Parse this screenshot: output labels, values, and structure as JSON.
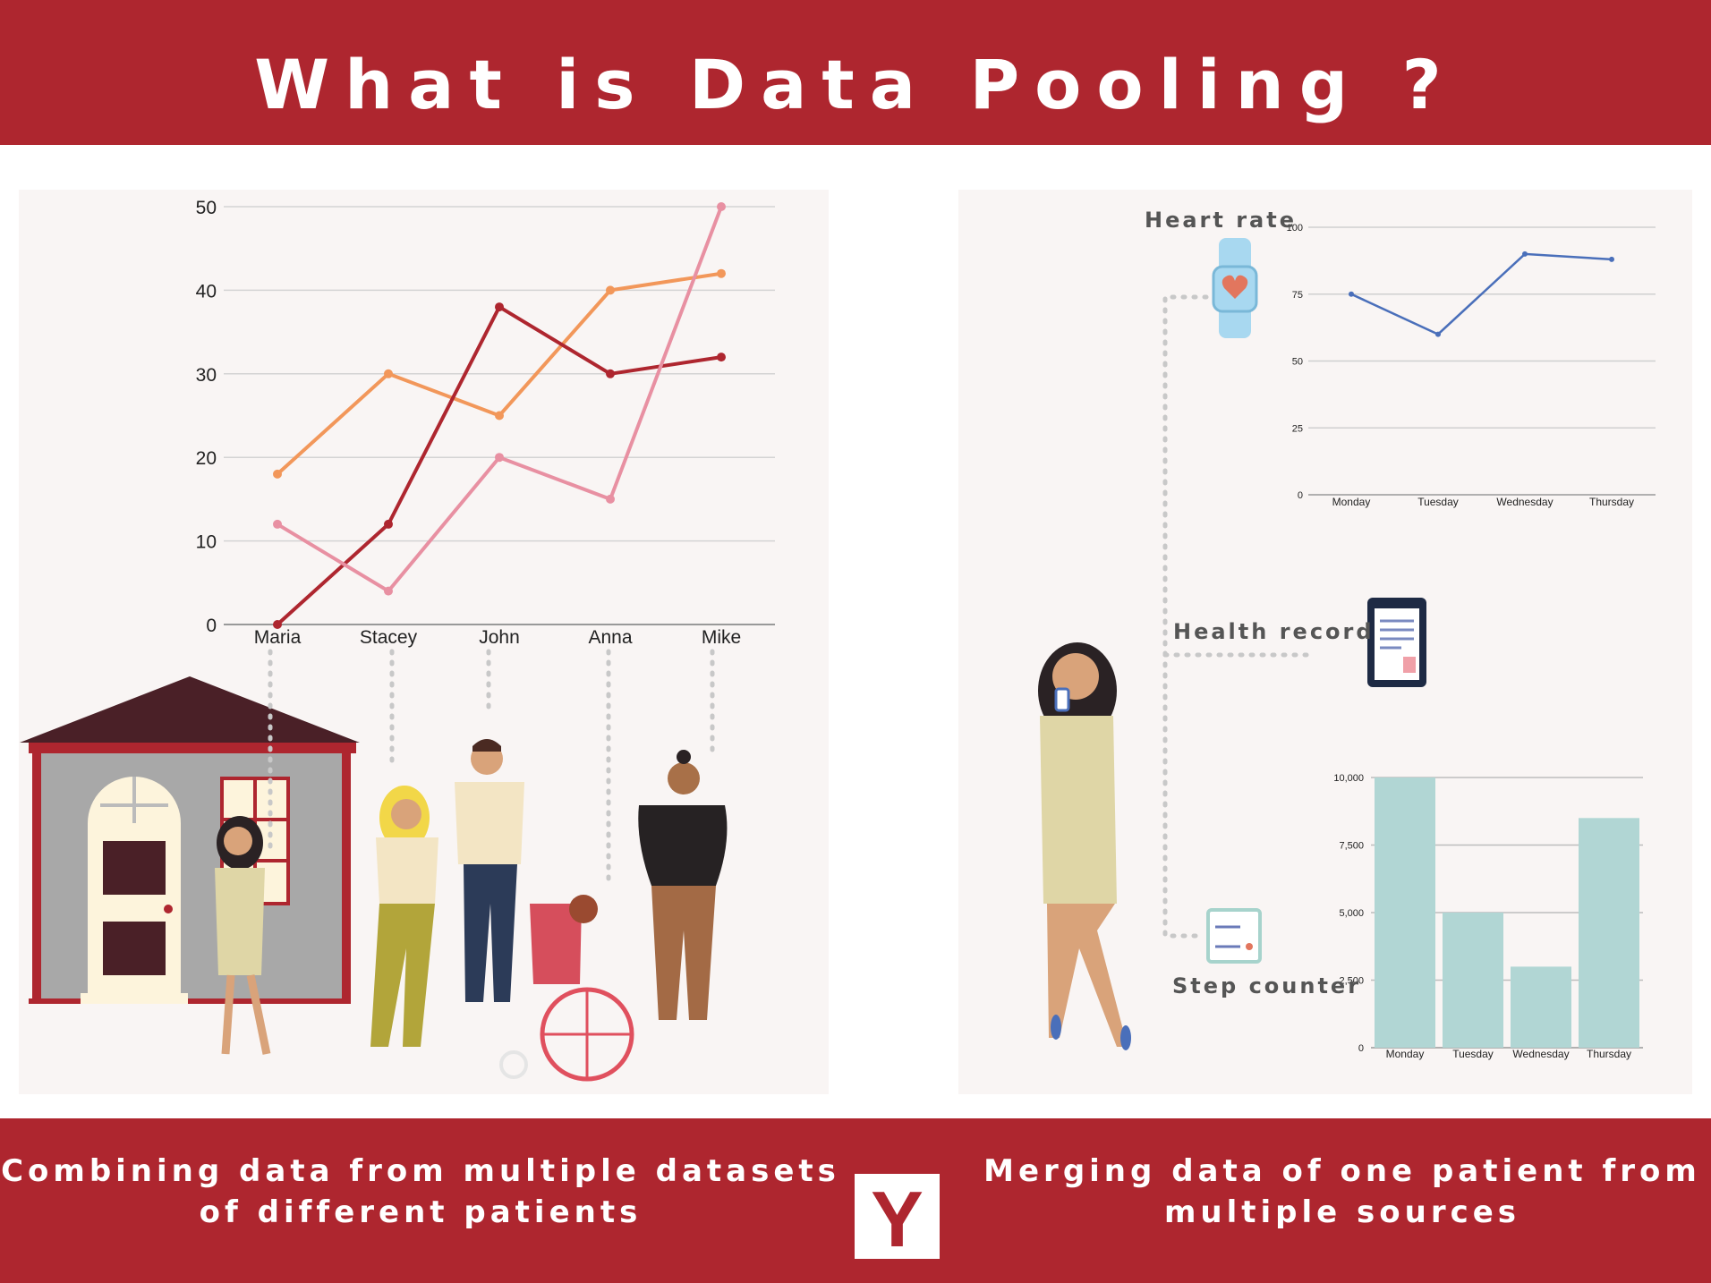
{
  "header": {
    "title": "What is Data Pooling ?"
  },
  "footer": {
    "left_caption": "Combining data from multiple datasets of different patients",
    "right_caption": "Merging data of one patient from multiple sources",
    "logo_letter": "Y"
  },
  "sources": {
    "heart_rate": "Heart rate",
    "health_record": "Health record",
    "step_counter": "Step counter"
  },
  "colors": {
    "banner": "#ae262f",
    "series_dark_red": "#ae262f",
    "series_orange": "#f2975a",
    "series_pink": "#e890a2",
    "heart_line": "#4a6fba",
    "step_bars": "#b1d6d4"
  },
  "chart_data": [
    {
      "type": "line",
      "categories": [
        "Maria",
        "Stacey",
        "John",
        "Anna",
        "Mike"
      ],
      "series": [
        {
          "values": [
            18,
            30,
            25,
            40,
            42
          ]
        },
        {
          "values": [
            0,
            12,
            38,
            30,
            32
          ]
        },
        {
          "values": [
            12,
            4,
            20,
            15,
            50
          ]
        }
      ],
      "ylim": [
        0,
        50
      ],
      "yticks": [
        0,
        10,
        20,
        30,
        40,
        50
      ],
      "grid": true
    },
    {
      "type": "line",
      "categories": [
        "Monday",
        "Tuesday",
        "Wednesday",
        "Thursday"
      ],
      "series": [
        {
          "values": [
            75,
            60,
            90,
            88
          ]
        }
      ],
      "ylim": [
        0,
        100
      ],
      "yticks": [
        0,
        25,
        50,
        75,
        100
      ],
      "grid": true
    },
    {
      "type": "bar",
      "categories": [
        "Monday",
        "Tuesday",
        "Wednesday",
        "Thursday"
      ],
      "values": [
        10000,
        5000,
        3000,
        8500
      ],
      "ylim": [
        0,
        10000
      ],
      "yticks": [
        "0",
        "2,500",
        "5,000",
        "7,500",
        "10,000"
      ],
      "ytick_values": [
        0,
        2500,
        5000,
        7500,
        10000
      ],
      "grid": true
    }
  ]
}
